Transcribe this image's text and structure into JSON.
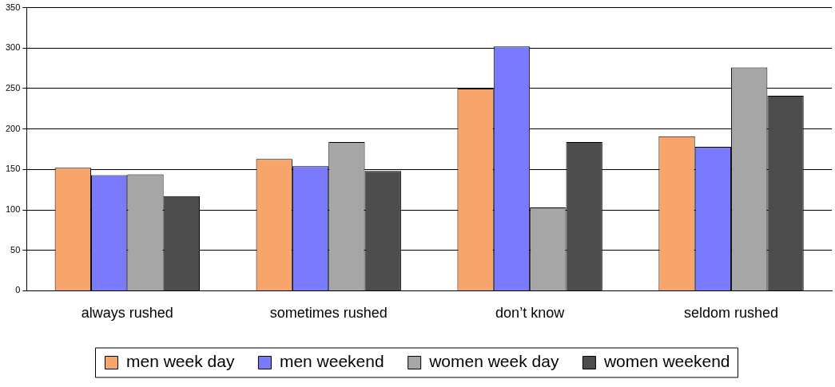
{
  "chart_data": {
    "type": "bar",
    "categories": [
      "always rushed",
      "sometimes rushed",
      "don’t know",
      "seldom rushed"
    ],
    "series": [
      {
        "name": "men week day",
        "color": "#f7a56b",
        "values": [
          152,
          163,
          250,
          191
        ]
      },
      {
        "name": "men weekend",
        "color": "#7a7aff",
        "values": [
          143,
          154,
          302,
          178
        ]
      },
      {
        "name": "women week day",
        "color": "#a6a6a6",
        "values": [
          144,
          184,
          103,
          276
        ]
      },
      {
        "name": "women weekend",
        "color": "#4d4d4d",
        "values": [
          117,
          148,
          184,
          241
        ]
      }
    ],
    "ylim": [
      0,
      350
    ],
    "yticks": [
      0,
      50,
      100,
      150,
      200,
      250,
      300,
      350
    ],
    "grid": "y",
    "legend": "bottom"
  }
}
